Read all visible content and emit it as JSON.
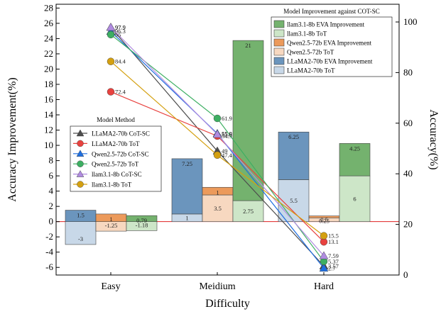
{
  "chart_data": {
    "type": "bar+line",
    "categories": [
      "Easy",
      "Meidium",
      "Hard"
    ],
    "xlabel": "Difficulty",
    "ylabel_left": "Accuracy Improvement(%)",
    "ylabel_right": "Accuracy(%)",
    "ylim_left": [
      -7,
      28.5
    ],
    "ylim_right": [
      0,
      107
    ],
    "yticks_left": [
      "-6",
      "-4",
      "-2",
      "0",
      "2",
      "4",
      "6",
      "8",
      "10",
      "12",
      "14",
      "16",
      "18",
      "20",
      "22",
      "24",
      "26",
      "28"
    ],
    "yticks_right": [
      "0",
      "20",
      "40",
      "60",
      "80",
      "100"
    ],
    "bar_legend_title": "Model Improvement against COT-SC",
    "line_legend_title": "Model Method",
    "bar_groups": [
      {
        "model": "LLaMA2-70b",
        "eva": {
          "name": "LLaMA2-70b EVA Improvement",
          "color": "#6b95bd",
          "values": [
            1.5,
            7.25,
            6.25
          ],
          "labels": [
            "1.5",
            "7.25",
            "6.25"
          ]
        },
        "tot": {
          "name": "LLaMA2-70b ToT",
          "color": "#c8d8e8",
          "values": [
            -3,
            1,
            5.5
          ],
          "labels": [
            "-3",
            "1",
            "5.5"
          ]
        }
      },
      {
        "model": "Qwen2.5-72b",
        "eva": {
          "name": "Qwen2.5-72b EVA Improvement",
          "color": "#ec9a5b",
          "values": [
            1,
            1,
            0.25
          ],
          "labels": [
            "1",
            "1",
            "0.25"
          ]
        },
        "tot": {
          "name": "Qwen2.5-72b ToT",
          "color": "#f7d8c0",
          "values": [
            -1.25,
            3.5,
            0.5
          ],
          "labels": [
            "-1.25",
            "3.5",
            "0.5"
          ]
        }
      },
      {
        "model": "llam3.1-8b",
        "eva": {
          "name": "llam3.1-8b EVA Improvement",
          "color": "#74b26e",
          "values": [
            0.79,
            21,
            4.25
          ],
          "labels": [
            "0.79",
            "21",
            "4.25"
          ]
        },
        "tot": {
          "name": "llam3.1-8b ToT",
          "color": "#cde6c8",
          "values": [
            -1.18,
            2.75,
            6
          ],
          "labels": [
            "-1.18",
            "2.75",
            "6"
          ]
        }
      }
    ],
    "line_series": [
      {
        "name": "LLaMA2-70b CoT-SC",
        "color": "#4d4d4d",
        "marker": "triangle",
        "values": [
          97.9,
          49,
          3.57
        ],
        "labels": [
          "97.9",
          "49",
          "3.57"
        ]
      },
      {
        "name": "LLaMA2-70b ToT",
        "color": "#e8423f",
        "marker": "circle",
        "values": [
          72.4,
          54.9,
          13.1
        ],
        "labels": [
          "72.4",
          "54.9",
          "13.1"
        ]
      },
      {
        "name": "Qwen2.5-72b CoT-SC",
        "color": "#1f6fe0",
        "marker": "triangle",
        "values": [
          96.3,
          55.9,
          2.7
        ],
        "labels": [
          "96.3",
          "55.9",
          "2.7"
        ]
      },
      {
        "name": "Qwen2.5-72b ToT",
        "color": "#3daf62",
        "marker": "circle",
        "values": [
          95,
          61.9,
          5.37
        ],
        "labels": [
          "95",
          "61.9",
          "5.37"
        ]
      },
      {
        "name": "llam3.1-8b CoT-SC",
        "color": "#b08be0",
        "marker": "triangle",
        "values": [
          97.9,
          55.6,
          7.59
        ],
        "labels": [
          "97.9",
          "55.6",
          "7.59"
        ]
      },
      {
        "name": "llam3.1-8b ToT",
        "color": "#d4a010",
        "marker": "circle",
        "values": [
          84.4,
          47.4,
          15.5
        ],
        "labels": [
          "84.4",
          "47.4",
          "15.5"
        ]
      }
    ]
  }
}
